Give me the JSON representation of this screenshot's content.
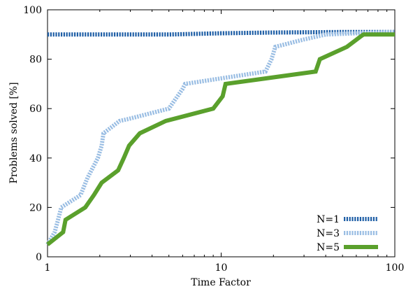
{
  "chart_data": {
    "type": "line",
    "title": "",
    "xlabel": "Time Factor",
    "ylabel": "Problems solved [%]",
    "xscale": "log",
    "xlim": [
      1,
      100
    ],
    "ylim": [
      0,
      100
    ],
    "xticks": [
      1,
      10,
      100
    ],
    "xtick_labels": [
      "1",
      "10",
      "100"
    ],
    "yticks": [
      0,
      20,
      40,
      60,
      80,
      100
    ],
    "ytick_labels": [
      "0",
      "20",
      "40",
      "60",
      "80",
      "100"
    ],
    "grid": false,
    "legend_position": "bottom-right",
    "series": [
      {
        "name": "N=1",
        "color": "#1f5fa6",
        "style": "dotted-thick",
        "x": [
          1,
          2,
          5,
          10,
          20,
          50,
          100
        ],
        "y": [
          90,
          90,
          90,
          90.5,
          90.8,
          91,
          91
        ]
      },
      {
        "name": "N=3",
        "color": "#99bde3",
        "style": "dotted-thick",
        "x": [
          1,
          1.1,
          1.15,
          1.2,
          1.55,
          1.7,
          1.95,
          2.05,
          2.1,
          2.6,
          2.8,
          3.0,
          5.0,
          6.0,
          6.2,
          18.0,
          19.5,
          20.5,
          30.0,
          40.0,
          60.0,
          100.0
        ],
        "y": [
          5,
          10,
          15,
          20,
          25,
          32,
          40,
          45,
          50,
          55,
          55.5,
          56,
          60,
          68,
          70,
          75,
          80,
          85,
          88,
          90,
          90.5,
          91
        ]
      },
      {
        "name": "N=5",
        "color": "#5aa02c",
        "style": "solid-thick",
        "x": [
          1,
          1.23,
          1.27,
          1.65,
          1.85,
          2.05,
          2.55,
          2.75,
          2.95,
          3.4,
          4.8,
          9.0,
          10.2,
          10.6,
          35.0,
          37.0,
          53.0,
          63.0,
          66.0,
          100.0
        ],
        "y": [
          5,
          10,
          15,
          20,
          25,
          30,
          35,
          40,
          45,
          50,
          55,
          60,
          65,
          70,
          75,
          80,
          85,
          89,
          90,
          90
        ]
      }
    ]
  }
}
